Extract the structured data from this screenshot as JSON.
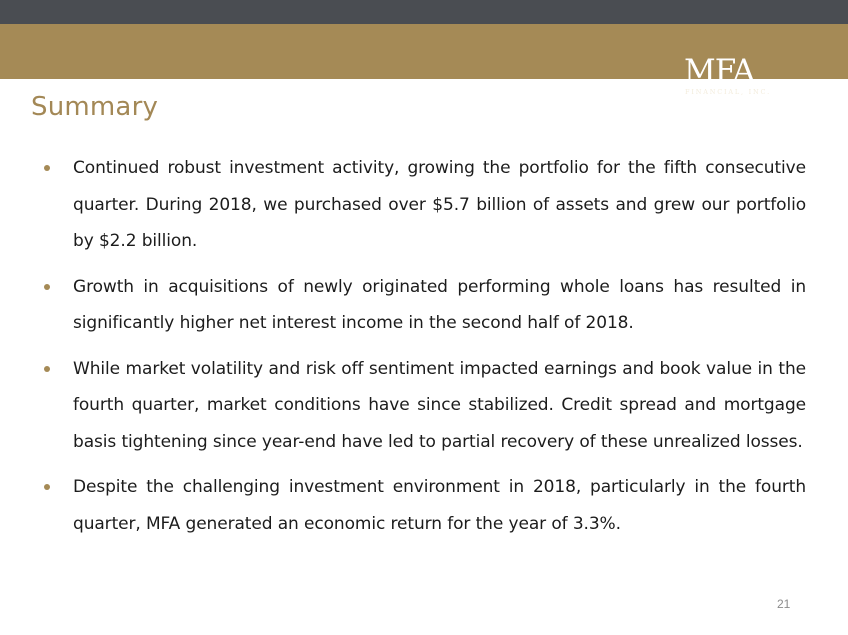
{
  "header": {
    "logo": {
      "main_text": "MFA",
      "sub_text": "FINANCIAL, INC."
    }
  },
  "title": "Summary",
  "bullets": [
    "Continued robust investment activity, growing the portfolio for the fifth consecutive quarter. During 2018, we purchased over $5.7 billion of assets and grew our portfolio by $2.2 billion.",
    "Growth in acquisitions of newly originated performing whole loans has resulted in significantly higher net interest income in the second half of 2018.",
    "While market volatility and risk off sentiment impacted earnings and book value in the fourth quarter, market conditions have since stabilized. Credit spread and mortgage basis tightening since year-end have led to partial recovery of these unrealized losses.",
    "Despite the challenging investment environment in 2018, particularly in the fourth quarter, MFA generated an economic return for the year of 3.3%."
  ],
  "page_number": "21",
  "colors": {
    "top_bar": "#4a4d52",
    "gold_band": "#a58a56",
    "title": "#a38856",
    "bullet_dot": "#a58a56",
    "body_text": "#1c1c1c",
    "page_number": "#8c8c8c"
  }
}
